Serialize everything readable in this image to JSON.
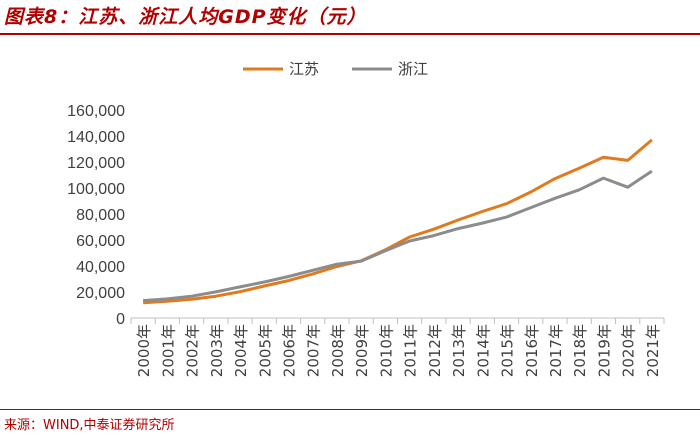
{
  "header": {
    "title": "图表8：江苏、浙江人均GDP变化（元）"
  },
  "footer": {
    "source": "来源：WIND,中泰证券研究所"
  },
  "colors": {
    "accent": "#b00000",
    "jiangsu": "#e07a1f",
    "zhejiang": "#8c8c8c",
    "axis": "#bfbfbf"
  },
  "chart_data": {
    "type": "line",
    "title": "江苏、浙江人均GDP变化（元）",
    "xlabel": "",
    "ylabel": "",
    "ylim": [
      0,
      160000
    ],
    "yticks": [
      0,
      20000,
      40000,
      60000,
      80000,
      100000,
      120000,
      140000,
      160000
    ],
    "ytick_labels": [
      "0",
      "20,000",
      "40,000",
      "60,000",
      "80,000",
      "100,000",
      "120,000",
      "140,000",
      "160,000"
    ],
    "legend_position": "top-center",
    "categories": [
      "2000年",
      "2001年",
      "2002年",
      "2003年",
      "2004年",
      "2005年",
      "2006年",
      "2007年",
      "2008年",
      "2009年",
      "2010年",
      "2011年",
      "2012年",
      "2013年",
      "2014年",
      "2015年",
      "2016年",
      "2017年",
      "2018年",
      "2019年",
      "2020年",
      "2021年"
    ],
    "series": [
      {
        "name": "江苏",
        "color": "#e07a1f",
        "values": [
          11700,
          12900,
          14400,
          16800,
          20200,
          24600,
          28800,
          33900,
          39600,
          44000,
          52500,
          62300,
          68300,
          75400,
          81900,
          87900,
          96900,
          107200,
          115200,
          123600,
          121200,
          137000
        ]
      },
      {
        "name": "浙江",
        "color": "#8c8c8c",
        "values": [
          13400,
          14700,
          16800,
          20100,
          23900,
          27700,
          31900,
          36700,
          41400,
          43800,
          51700,
          59200,
          63400,
          68800,
          73000,
          77600,
          84900,
          92100,
          98600,
          107600,
          100600,
          113000
        ]
      }
    ]
  }
}
